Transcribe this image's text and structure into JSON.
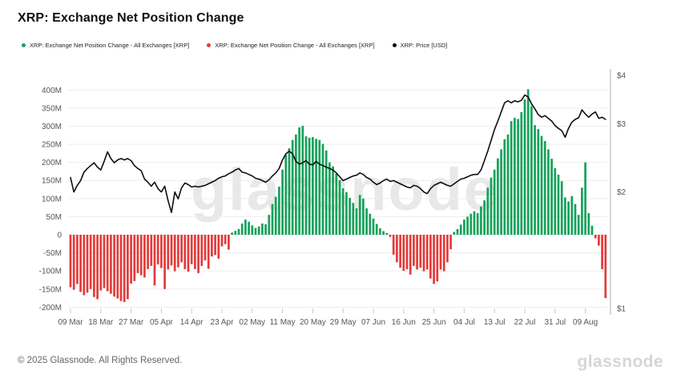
{
  "page": {
    "title": "XRP: Exchange Net Position Change",
    "footer_copyright": "© 2025 Glassnode. All Rights Reserved.",
    "brand_logo_text": "glassnode",
    "watermark_text": "glassnode"
  },
  "legend": {
    "items": [
      {
        "label": "XRP: Exchange Net Position Change - All Exchanges [XRP]",
        "color": "#16a15a"
      },
      {
        "label": "XRP: Exchange Net Position Change - All Exchanges [XRP]",
        "color": "#e23b3b"
      },
      {
        "label": "XRP: Price [USD]",
        "color": "#111111"
      }
    ]
  },
  "chart_data": {
    "type": "combo_bar_line",
    "title": "XRP: Exchange Net Position Change",
    "x_unit": "days",
    "x_start_date": "09 Mar",
    "x_end_date": "15 Aug",
    "x_tick_step_days": 9,
    "x_tick_labels": [
      "09 Mar",
      "18 Mar",
      "27 Mar",
      "05 Apr",
      "14 Apr",
      "23 Apr",
      "02 May",
      "11 May",
      "20 May",
      "29 May",
      "07 Jun",
      "16 Jun",
      "25 Jun",
      "04 Jul",
      "13 Jul",
      "22 Jul",
      "31 Jul",
      "09 Aug"
    ],
    "grid": "horizontal_only",
    "legend_position": "top",
    "left_axis": {
      "unit": "XRP",
      "scale": "linear",
      "tick_labels": [
        "400M",
        "350M",
        "300M",
        "250M",
        "200M",
        "150M",
        "100M",
        "50M",
        "0",
        "-50M",
        "-100M",
        "-150M",
        "-200M"
      ],
      "tick_values_millions": [
        400,
        350,
        300,
        250,
        200,
        150,
        100,
        50,
        0,
        -50,
        -100,
        -150,
        -200
      ],
      "range_millions": [
        -225,
        430
      ]
    },
    "right_axis": {
      "unit": "USD",
      "scale": "log",
      "tick_labels": [
        "$4",
        "$3",
        "$2",
        "$1"
      ],
      "tick_values": [
        4,
        3,
        2,
        1
      ],
      "range": [
        1,
        4
      ]
    },
    "bar_series": {
      "name": "XRP: Exchange Net Position Change - All Exchanges [XRP]",
      "positive_color": "#16a15a",
      "negative_color": "#e23b3b",
      "values_millions": [
        -145,
        -152,
        -136,
        -158,
        -167,
        -160,
        -150,
        -172,
        -178,
        -154,
        -147,
        -156,
        -163,
        -171,
        -176,
        -183,
        -186,
        -178,
        -135,
        -128,
        -106,
        -112,
        -118,
        -95,
        -86,
        -140,
        -82,
        -92,
        -150,
        -96,
        -85,
        -101,
        -90,
        -76,
        -95,
        -102,
        -81,
        -95,
        -106,
        -86,
        -71,
        -94,
        -60,
        -56,
        -66,
        -32,
        -26,
        -41,
        6,
        11,
        16,
        31,
        42,
        36,
        26,
        19,
        23,
        31,
        29,
        55,
        85,
        105,
        133,
        180,
        221,
        239,
        262,
        277,
        297,
        301,
        272,
        268,
        270,
        265,
        262,
        251,
        233,
        200,
        189,
        169,
        151,
        129,
        118,
        102,
        88,
        73,
        110,
        100,
        73,
        58,
        45,
        30,
        18,
        10,
        5,
        -6,
        -55,
        -76,
        -91,
        -100,
        -95,
        -110,
        -86,
        -96,
        -91,
        -101,
        -96,
        -121,
        -136,
        -129,
        -96,
        -101,
        -76,
        -40,
        8,
        16,
        28,
        42,
        50,
        58,
        65,
        60,
        78,
        95,
        130,
        158,
        180,
        211,
        236,
        264,
        277,
        314,
        323,
        320,
        339,
        374,
        402,
        355,
        303,
        292,
        273,
        259,
        236,
        210,
        184,
        166,
        148,
        103,
        92,
        107,
        85,
        55,
        130,
        200,
        60,
        25,
        -10,
        -30,
        -95,
        -175
      ]
    },
    "line_series": {
      "name": "XRP: Price [USD]",
      "color": "#0f0f0f",
      "prices_usd": [
        2.18,
        2.0,
        2.08,
        2.14,
        2.25,
        2.3,
        2.34,
        2.38,
        2.32,
        2.28,
        2.4,
        2.54,
        2.44,
        2.38,
        2.42,
        2.44,
        2.42,
        2.44,
        2.41,
        2.34,
        2.3,
        2.27,
        2.16,
        2.12,
        2.07,
        2.12,
        2.04,
        2.0,
        2.07,
        1.9,
        1.77,
        2.0,
        1.92,
        2.05,
        2.11,
        2.09,
        2.06,
        2.07,
        2.06,
        2.07,
        2.08,
        2.1,
        2.12,
        2.14,
        2.17,
        2.19,
        2.2,
        2.23,
        2.25,
        2.28,
        2.3,
        2.25,
        2.24,
        2.22,
        2.2,
        2.17,
        2.16,
        2.14,
        2.12,
        2.15,
        2.2,
        2.24,
        2.3,
        2.42,
        2.51,
        2.55,
        2.51,
        2.4,
        2.36,
        2.38,
        2.41,
        2.36,
        2.35,
        2.4,
        2.36,
        2.34,
        2.32,
        2.3,
        2.28,
        2.24,
        2.19,
        2.14,
        2.16,
        2.18,
        2.2,
        2.21,
        2.24,
        2.22,
        2.18,
        2.16,
        2.12,
        2.09,
        2.11,
        2.14,
        2.16,
        2.13,
        2.14,
        2.12,
        2.1,
        2.08,
        2.06,
        2.05,
        2.08,
        2.07,
        2.04,
        2.0,
        1.98,
        2.04,
        2.08,
        2.1,
        2.12,
        2.1,
        2.08,
        2.07,
        2.1,
        2.13,
        2.16,
        2.17,
        2.19,
        2.21,
        2.22,
        2.22,
        2.28,
        2.41,
        2.55,
        2.72,
        2.9,
        3.05,
        3.22,
        3.4,
        3.44,
        3.4,
        3.44,
        3.42,
        3.45,
        3.56,
        3.52,
        3.38,
        3.28,
        3.17,
        3.12,
        3.15,
        3.1,
        3.05,
        2.97,
        2.92,
        2.88,
        2.77,
        2.92,
        3.03,
        3.08,
        3.11,
        3.26,
        3.18,
        3.12,
        3.18,
        3.22,
        3.1,
        3.12,
        3.08
      ]
    },
    "style": {
      "grid_color": "#ededed",
      "axis_spine_color": "#c9c9c9",
      "axis_label_color": "#565656",
      "watermark_color": "#e8e8e8"
    }
  }
}
